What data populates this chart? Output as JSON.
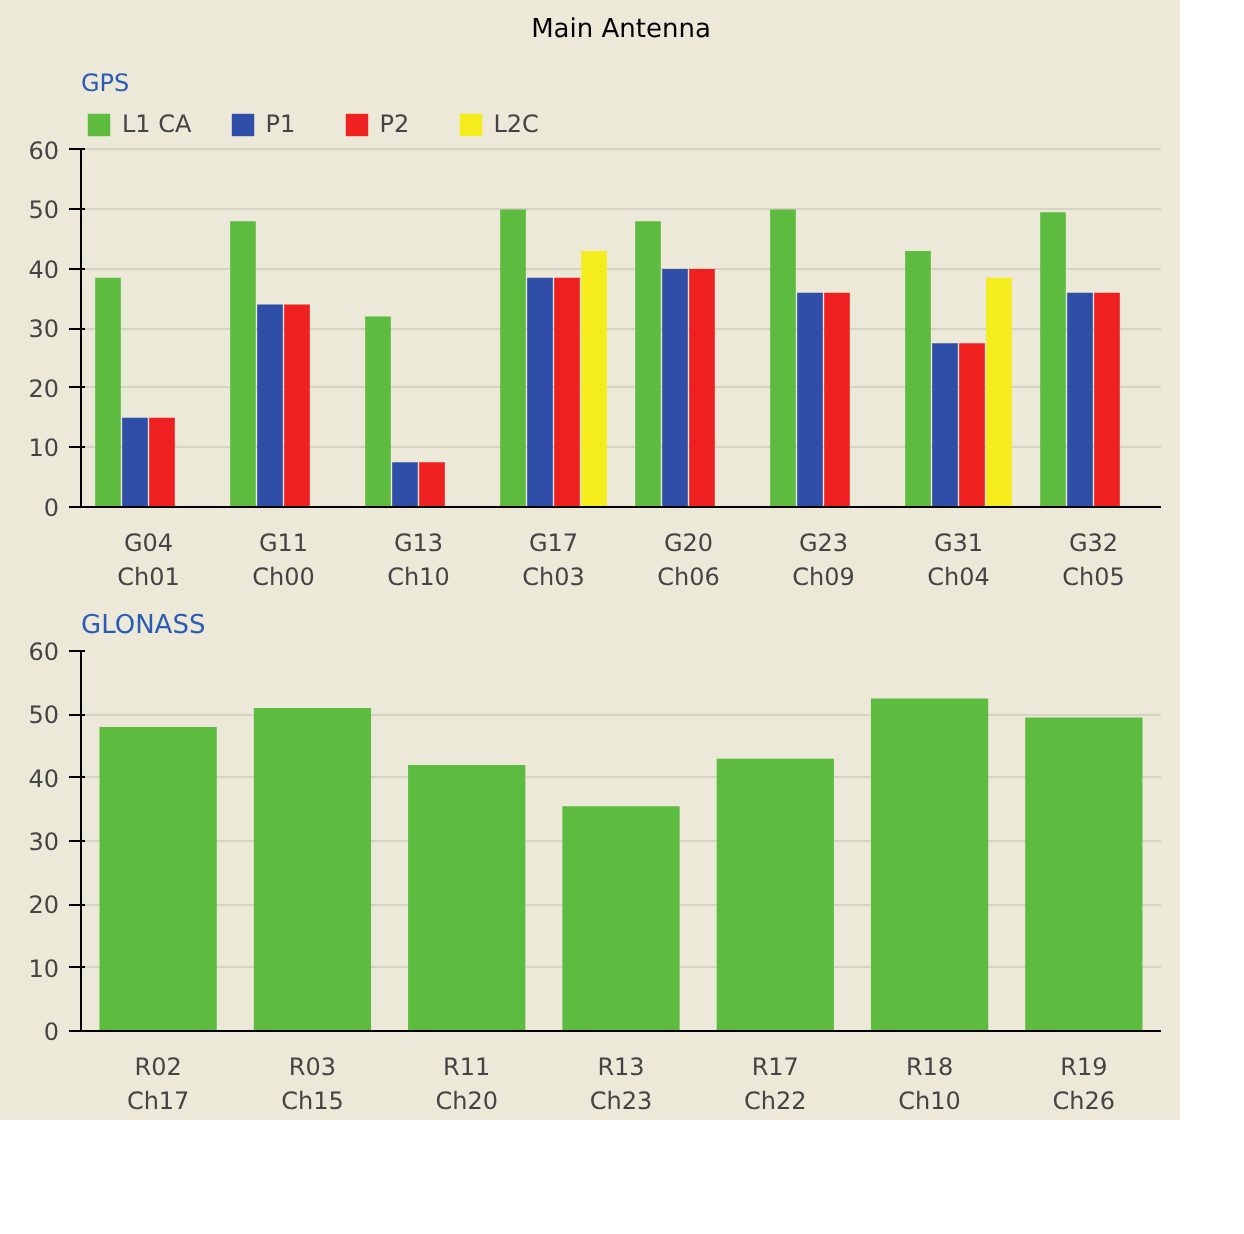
{
  "chart_data": [
    {
      "type": "bar",
      "title": "Main Antenna",
      "subtitle": "GPS",
      "categories": [
        "G04\nCh01",
        "G11\nCh00",
        "G13\nCh10",
        "G17\nCh03",
        "G20\nCh06",
        "G23\nCh09",
        "G31\nCh04",
        "G32\nCh05"
      ],
      "series": [
        {
          "name": "L1 CA",
          "color": "#5dbb3f",
          "values": [
            38.5,
            48,
            32,
            50,
            48,
            50,
            43,
            49.5
          ]
        },
        {
          "name": "P1",
          "color": "#2f4ea8",
          "values": [
            15,
            34,
            7.5,
            38.5,
            40,
            36,
            27.5,
            36
          ]
        },
        {
          "name": "P2",
          "color": "#ee2020",
          "values": [
            15,
            34,
            7.5,
            38.5,
            40,
            36,
            27.5,
            36
          ]
        },
        {
          "name": "L2C",
          "color": "#f4ec1c",
          "values": [
            null,
            null,
            null,
            43,
            null,
            null,
            38.5,
            null
          ]
        }
      ],
      "ylim": [
        0,
        60
      ],
      "yticks": [
        0,
        10,
        20,
        30,
        40,
        50,
        60
      ],
      "grid": "y",
      "legend": "top"
    },
    {
      "type": "bar",
      "title": "GLONASS",
      "categories": [
        "R02\nCh17",
        "R03\nCh15",
        "R11\nCh20",
        "R13\nCh23",
        "R17\nCh22",
        "R18\nCh10",
        "R19\nCh26"
      ],
      "series": [
        {
          "color": "#5dbb3f",
          "values": [
            48,
            51,
            42,
            35.5,
            43,
            52.5,
            49.5
          ]
        }
      ],
      "ylim": [
        0,
        60
      ],
      "yticks": [
        0,
        10,
        20,
        30,
        40,
        50,
        60
      ],
      "grid": "y",
      "legend": false
    }
  ]
}
